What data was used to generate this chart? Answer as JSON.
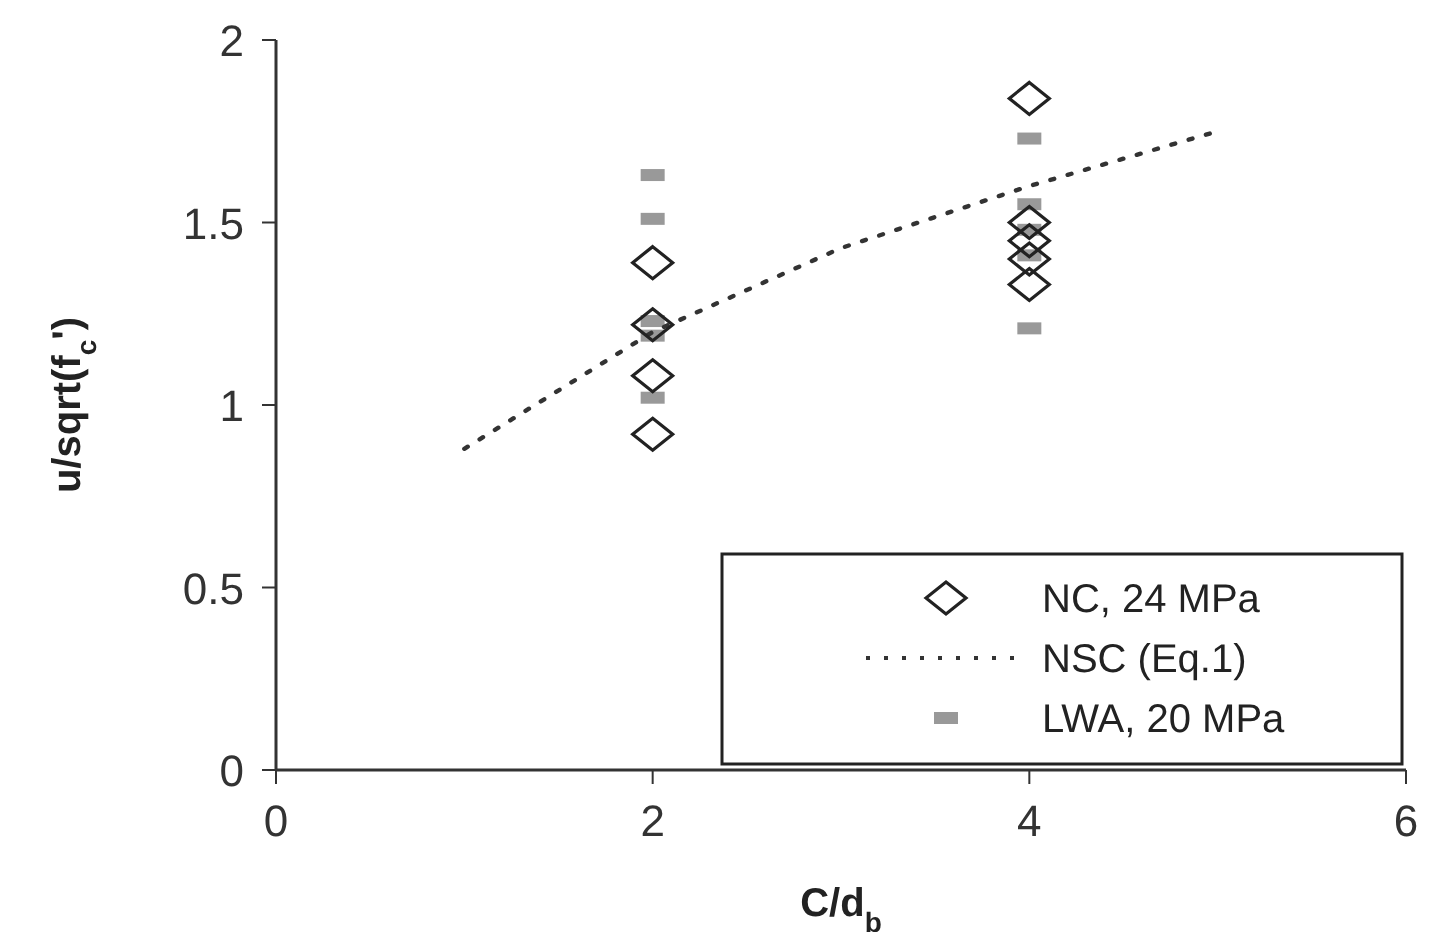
{
  "chart_data": {
    "type": "scatter",
    "xlabel": "C/d$_{b}$",
    "ylabel": "u/sqrt(f$_{c}$')",
    "xlim": [
      0,
      6
    ],
    "xticks": [
      0,
      2,
      4,
      6
    ],
    "ylim": [
      0,
      2
    ],
    "yticks": [
      0,
      0.5,
      1,
      1.5,
      2
    ],
    "grid": false,
    "legend": "bottom right",
    "series": [
      {
        "name": "NC, 24 MPa",
        "marker": "diamond",
        "color": "#222222",
        "x": [
          2,
          2,
          2,
          2,
          4,
          4,
          4,
          4,
          4
        ],
        "values": [
          1.39,
          1.22,
          1.08,
          0.92,
          1.84,
          1.5,
          1.45,
          1.4,
          1.33
        ]
      },
      {
        "name": "NSC (Eq.1)",
        "type": "line",
        "marker": "none",
        "line_style": "dotted",
        "color": "#333333",
        "x": [
          1,
          2,
          3,
          4,
          5
        ],
        "values": [
          0.88,
          1.2,
          1.43,
          1.6,
          1.75
        ]
      },
      {
        "name": "LWA, 20 MPa",
        "marker": "square",
        "color": "#999999",
        "x": [
          2,
          2,
          2,
          2,
          2,
          4,
          4,
          4,
          4,
          4
        ],
        "values": [
          1.63,
          1.51,
          1.23,
          1.19,
          1.02,
          1.73,
          1.55,
          1.48,
          1.41,
          1.21
        ]
      }
    ]
  }
}
